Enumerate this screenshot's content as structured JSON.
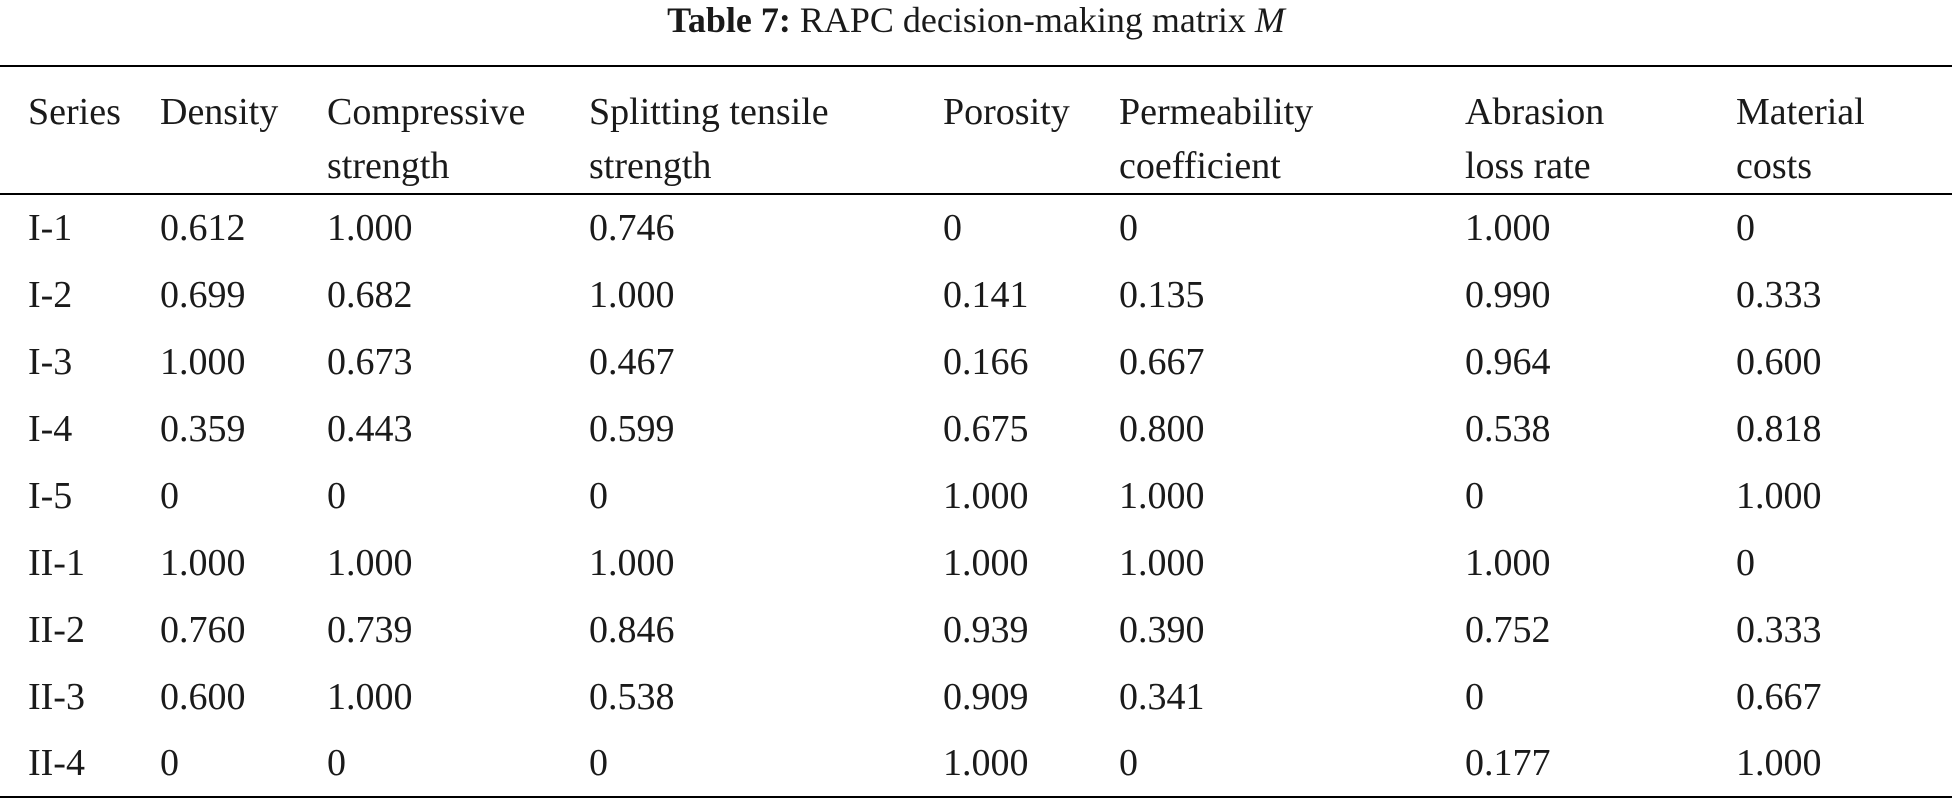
{
  "caption": {
    "label": "Table 7:",
    "text": "RAPC decision-making matrix",
    "symbol": "M"
  },
  "table": {
    "headers": [
      [
        "Series"
      ],
      [
        "Density"
      ],
      [
        "Compressive",
        "strength"
      ],
      [
        "Splitting tensile",
        "strength"
      ],
      [
        "Porosity"
      ],
      [
        "Permeability",
        "coefficient"
      ],
      [
        "Abrasion",
        "loss rate"
      ],
      [
        "Material",
        "costs"
      ]
    ],
    "rows": [
      [
        "I-1",
        "0.612",
        "1.000",
        "0.746",
        "0",
        "0",
        "1.000",
        "0"
      ],
      [
        "I-2",
        "0.699",
        "0.682",
        "1.000",
        "0.141",
        "0.135",
        "0.990",
        "0.333"
      ],
      [
        "I-3",
        "1.000",
        "0.673",
        "0.467",
        "0.166",
        "0.667",
        "0.964",
        "0.600"
      ],
      [
        "I-4",
        "0.359",
        "0.443",
        "0.599",
        "0.675",
        "0.800",
        "0.538",
        "0.818"
      ],
      [
        "I-5",
        "0",
        "0",
        "0",
        "1.000",
        "1.000",
        "0",
        "1.000"
      ],
      [
        "II-1",
        "1.000",
        "1.000",
        "1.000",
        "1.000",
        "1.000",
        "1.000",
        "0"
      ],
      [
        "II-2",
        "0.760",
        "0.739",
        "0.846",
        "0.939",
        "0.390",
        "0.752",
        "0.333"
      ],
      [
        "II-3",
        "0.600",
        "1.000",
        "0.538",
        "0.909",
        "0.341",
        "0",
        "0.667"
      ],
      [
        "II-4",
        "0",
        "0",
        "0",
        "1.000",
        "0",
        "0.177",
        "1.000"
      ]
    ]
  }
}
